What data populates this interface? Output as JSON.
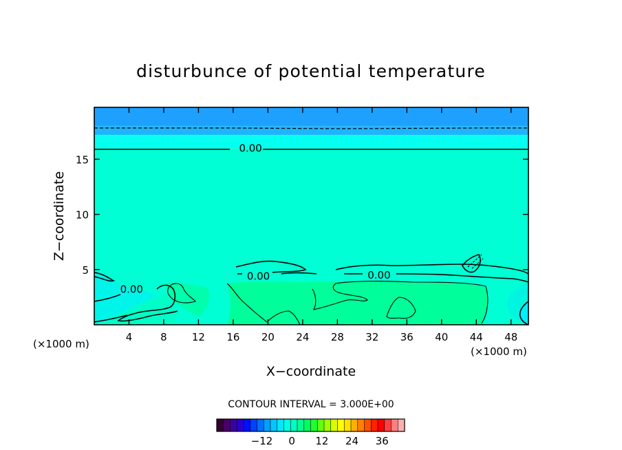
{
  "chart_data": {
    "type": "heatmap",
    "title": "disturbunce of potential temperature",
    "xlabel": "X−coordinate",
    "ylabel": "Z−coordinate",
    "x_unit": "(×1000 m)",
    "y_unit": "(×1000 m)",
    "xlim": [
      0,
      50
    ],
    "ylim": [
      0,
      19.7
    ],
    "x_ticks": [
      4,
      8,
      12,
      16,
      20,
      24,
      28,
      32,
      36,
      40,
      44,
      48
    ],
    "y_ticks": [
      5,
      10,
      15
    ],
    "contour_interval_text": "CONTOUR INTERVAL = 3.000E+00",
    "contour_labels": [
      {
        "text": "0.00",
        "x": 18.0,
        "y": 16.0
      },
      {
        "text": "0.00",
        "x": 4.3,
        "y": 3.2
      },
      {
        "text": "0.00",
        "x": 18.9,
        "y": 4.4
      },
      {
        "text": "0.00",
        "x": 32.8,
        "y": 4.5
      }
    ],
    "layers": [
      {
        "zmin": 18.0,
        "zmax": 19.7,
        "color": "#1ea0ff"
      },
      {
        "zmin": 17.2,
        "zmax": 18.0,
        "color": "#1eb4ff"
      },
      {
        "zmin": 16.0,
        "zmax": 17.2,
        "color": "#05fff0"
      },
      {
        "zmin": 0,
        "zmax": 16.0,
        "color": "#00ffd4"
      }
    ],
    "colorbar": {
      "ticks": [
        -12,
        0,
        12,
        24,
        36
      ],
      "range": [
        -30,
        45
      ],
      "colors": [
        "#330033",
        "#4a0066",
        "#3d00a0",
        "#2a00d0",
        "#0010ff",
        "#0040ff",
        "#0070ff",
        "#00a0ff",
        "#00c8ff",
        "#00e8ff",
        "#00ffe8",
        "#00ffc0",
        "#00ff90",
        "#00ff60",
        "#20ff30",
        "#60ff10",
        "#a0ff00",
        "#d8ff00",
        "#ffff00",
        "#ffe000",
        "#ffb000",
        "#ff8000",
        "#ff5000",
        "#ff2000",
        "#ff0000",
        "#ff4040",
        "#ff8080",
        "#ffb0b0"
      ]
    }
  }
}
